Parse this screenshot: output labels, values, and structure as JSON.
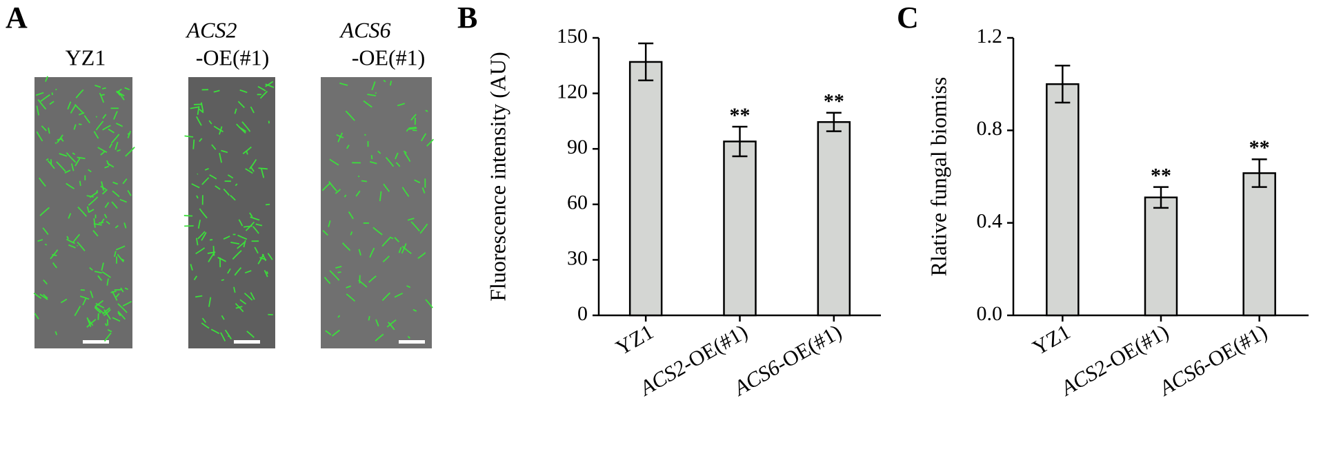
{
  "panel_a": {
    "label": "A",
    "columns": [
      {
        "title": "YZ1"
      },
      {
        "title": "ACS2",
        "subtitle": "-OE(#1)"
      },
      {
        "title": "ACS6",
        "subtitle": "-OE(#1)"
      }
    ]
  },
  "chart_data": [
    {
      "type": "bar",
      "panel_label": "B",
      "ylabel": "Fluorescence intensity (AU)",
      "categories": [
        "YZ1",
        "ACS2-OE(#1)",
        "ACS6-OE(#1)"
      ],
      "values": [
        137,
        94,
        104.5
      ],
      "errors": [
        10,
        8,
        5
      ],
      "significance": [
        null,
        "**",
        "**"
      ],
      "color": "#d4d6d3",
      "ylim": [
        0,
        150
      ],
      "yticks": [
        0,
        30,
        60,
        90,
        120,
        150
      ]
    },
    {
      "type": "bar",
      "panel_label": "C",
      "ylabel": "Rlative fungal biomiss",
      "categories": [
        "YZ1",
        "ACS2-OE(#1)",
        "ACS6-OE(#1)"
      ],
      "values": [
        1.0,
        0.51,
        0.615
      ],
      "errors": [
        0.08,
        0.045,
        0.06
      ],
      "significance": [
        null,
        "**",
        "**"
      ],
      "color": "#d4d6d3",
      "ylim": [
        0,
        1.2
      ],
      "yticks": [
        {
          "value": 0,
          "label": "0.0"
        },
        0.4,
        0.8,
        1.2
      ]
    }
  ]
}
